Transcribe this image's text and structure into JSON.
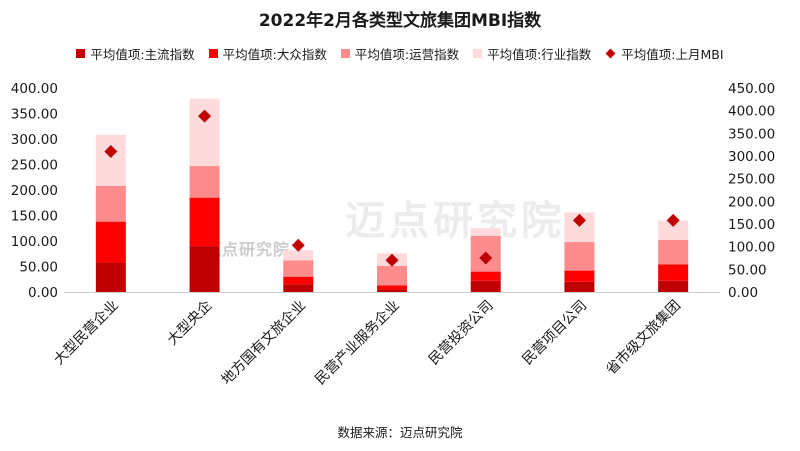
{
  "chart_data": {
    "type": "bar",
    "stacked": true,
    "title": "2022年2月各类型文旅集团MBI指数",
    "categories": [
      "大型民营企业",
      "大型央企",
      "地方国有文旅企业",
      "民营产业服务企业",
      "民营投资公司",
      "民营项目公司",
      "省市级文旅集团"
    ],
    "series": [
      {
        "name": "平均值项:主流指数",
        "values": [
          58,
          90,
          15,
          5,
          22,
          20,
          22
        ],
        "color": "#C00000"
      },
      {
        "name": "平均值项:大众指数",
        "values": [
          80,
          95,
          15,
          8,
          18,
          22,
          32
        ],
        "color": "#FF0000"
      },
      {
        "name": "平均值项:运营指数",
        "values": [
          70,
          62,
          32,
          38,
          70,
          56,
          48
        ],
        "color": "#FF8C8C"
      },
      {
        "name": "平均值项:行业指数",
        "values": [
          100,
          132,
          20,
          25,
          15,
          58,
          38
        ],
        "color": "#FFDADA"
      }
    ],
    "line_series": {
      "name": "平均值项:上月MBI",
      "values": [
        310,
        388,
        103,
        70,
        75,
        158,
        158
      ],
      "color": "#C00000",
      "axis": "right",
      "marker": "diamond"
    },
    "y_left": {
      "min": 0,
      "max": 400,
      "step": 50,
      "tick_labels": [
        "0.00",
        "50.00",
        "100.00",
        "150.00",
        "200.00",
        "250.00",
        "300.00",
        "350.00",
        "400.00"
      ]
    },
    "y_right": {
      "min": 0,
      "max": 450,
      "step": 50,
      "tick_labels": [
        "0.00",
        "50.00",
        "100.00",
        "150.00",
        "200.00",
        "250.00",
        "300.00",
        "350.00",
        "400.00",
        "450.00"
      ]
    },
    "legend_position": "top",
    "grid": false
  },
  "source": "数据来源：迈点研究院",
  "watermark": {
    "large": "迈点研究院",
    "small": "迈点研究院"
  }
}
